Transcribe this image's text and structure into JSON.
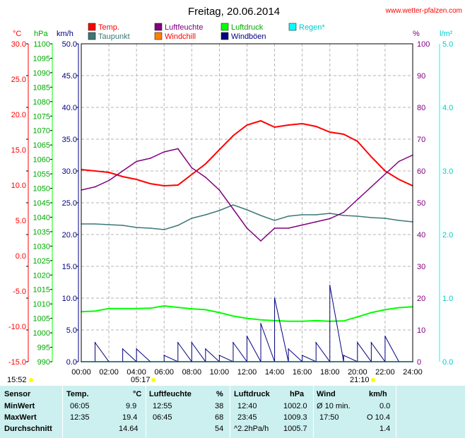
{
  "site": "www.wetter-pfalzen.com",
  "colors": {
    "temp": "#ff0000",
    "dew": "#3c7878",
    "humidity": "#800080",
    "windchill": "#ff8000",
    "pressure": "#00ff00",
    "gusts": "#000080",
    "rain": "#00ffff",
    "grid": "#b4b4b4",
    "table_bg": "#ccf0f0",
    "sun": "#ffff00"
  },
  "axes": {
    "celsius": {
      "unit": "°C",
      "labels": [
        "30.0",
        "25.0",
        "20.0",
        "15.0",
        "10.0",
        "5.0",
        "0.0",
        "-5.0",
        "-10.0",
        "-15.0"
      ]
    },
    "hpa": {
      "unit": "hPa",
      "labels": [
        "1100",
        "1095",
        "1090",
        "1085",
        "1080",
        "1075",
        "1070",
        "1065",
        "1060",
        "1055",
        "1050",
        "1045",
        "1040",
        "1035",
        "1030",
        "1025",
        "1020",
        "1015",
        "1010",
        "1005",
        "1000",
        "995",
        "990"
      ]
    },
    "kmh": {
      "unit": "km/h",
      "labels": [
        "50.0",
        "45.0",
        "40.0",
        "35.0",
        "30.0",
        "25.0",
        "20.0",
        "15.0",
        "10.0",
        "5.0",
        "0.0"
      ]
    },
    "percent": {
      "unit": "%",
      "labels": [
        "100",
        "90",
        "80",
        "70",
        "60",
        "50",
        "40",
        "30",
        "20",
        "10",
        "0"
      ]
    },
    "rain": {
      "unit": "l/m²",
      "labels": [
        "5.0",
        "4.0",
        "3.0",
        "2.0",
        "1.0",
        "0.0"
      ]
    },
    "time": [
      "00:00",
      "02:00",
      "04:00",
      "06:00",
      "08:00",
      "10:00",
      "12:00",
      "14:00",
      "16:00",
      "18:00",
      "20:00",
      "22:00",
      "24:00"
    ]
  },
  "legend": [
    {
      "label": "Temp.",
      "color": "#ff0000"
    },
    {
      "label": "Luftfeuchte",
      "color": "#800080"
    },
    {
      "label": "Luftdruck",
      "color": "#00ff00"
    },
    {
      "label": "Regen*",
      "color": "#00ffff"
    },
    {
      "label": "Taupunkt",
      "color": "#3c7878"
    },
    {
      "label": "Windchill",
      "color": "#ff8000"
    },
    {
      "label": "Windböen",
      "color": "#000080"
    }
  ],
  "sun": {
    "now": "15:52",
    "sunrise": "05:17",
    "sunset": "21:10"
  },
  "chart_data": {
    "type": "line",
    "title": "Freitag, 20.06.2014",
    "xlabel": "",
    "xlim": [
      "00:00",
      "24:00"
    ],
    "grid": true,
    "legend_position": "top",
    "x": [
      "00:00",
      "01:00",
      "02:00",
      "03:00",
      "04:00",
      "05:00",
      "06:00",
      "07:00",
      "08:00",
      "09:00",
      "10:00",
      "11:00",
      "12:00",
      "13:00",
      "14:00",
      "15:00",
      "16:00",
      "17:00",
      "18:00",
      "19:00",
      "20:00",
      "21:00",
      "22:00",
      "23:00",
      "24:00"
    ],
    "series": [
      {
        "name": "Temp.",
        "axis": "°C",
        "values": [
          12.2,
          12.0,
          11.8,
          11.2,
          10.8,
          10.2,
          9.9,
          10.0,
          11.5,
          13.0,
          15.0,
          17.0,
          18.5,
          19.1,
          18.2,
          18.5,
          18.7,
          18.3,
          17.5,
          17.2,
          16.2,
          14.0,
          12.0,
          10.8,
          9.9
        ]
      },
      {
        "name": "Taupunkt",
        "axis": "°C",
        "values": [
          4.5,
          4.5,
          4.4,
          4.3,
          4.0,
          3.9,
          3.7,
          4.3,
          5.3,
          5.8,
          6.4,
          7.2,
          6.5,
          5.7,
          5.0,
          5.6,
          5.8,
          5.8,
          6.0,
          5.7,
          5.6,
          5.4,
          5.3,
          5.0,
          4.8
        ]
      },
      {
        "name": "Luftfeuchte",
        "axis": "%",
        "values": [
          54,
          55,
          57,
          60,
          63,
          64,
          66,
          67,
          61,
          58,
          54,
          48,
          42,
          38,
          42,
          42,
          43,
          44,
          45,
          47,
          51,
          55,
          59,
          63,
          65
        ]
      },
      {
        "name": "Luftdruck",
        "axis": "hPa",
        "values": [
          1007.3,
          1007.5,
          1008.4,
          1008.4,
          1008.4,
          1008.5,
          1009.3,
          1008.8,
          1008.3,
          1008.0,
          1007.0,
          1005.8,
          1005.0,
          1004.5,
          1004.2,
          1004.0,
          1004.0,
          1004.2,
          1004.0,
          1004.1,
          1005.5,
          1007.0,
          1008.0,
          1008.7,
          1009.0
        ]
      },
      {
        "name": "Windböen",
        "axis": "km/h",
        "values": [
          0,
          3,
          0,
          2,
          2,
          0,
          1,
          3,
          3,
          2,
          1,
          3,
          4,
          6,
          10,
          2,
          1,
          3,
          12,
          1,
          3,
          3,
          4,
          0,
          0
        ]
      },
      {
        "name": "Regen*",
        "axis": "l/m²",
        "values": [
          0,
          0,
          0,
          0,
          0,
          0,
          0,
          0,
          0,
          0,
          0,
          0,
          0,
          0,
          0,
          0,
          0,
          0,
          0,
          0,
          0,
          0,
          0,
          0,
          0
        ]
      }
    ]
  },
  "table": {
    "headers": {
      "sensor": "Sensor",
      "temp": "Temp.",
      "temp_unit": "°C",
      "hum": "Luftfeuchte",
      "hum_unit": "%",
      "press": "Luftdruck",
      "press_unit": "hPa",
      "wind": "Wind",
      "wind_unit": "km/h"
    },
    "rows": [
      {
        "label": "MinWert",
        "temp_time": "06:05",
        "temp_val": "9.9",
        "hum_time": "12:55",
        "hum_val": "38",
        "press_time": "12:40",
        "press_val": "1002.0",
        "wind_time": "Ø 10 min.",
        "wind_val": "0.0"
      },
      {
        "label": "MaxWert",
        "temp_time": "12:35",
        "temp_val": "19.4",
        "hum_time": "06:45",
        "hum_val": "68",
        "press_time": "23:45",
        "press_val": "1009.3",
        "wind_time": "17:50",
        "wind_val": "O 10.4"
      },
      {
        "label": "Durchschnitt",
        "temp_time": "",
        "temp_val": "14.64",
        "hum_time": "",
        "hum_val": "54",
        "press_time": "^2.2hPa/h",
        "press_val": "1005.7",
        "wind_time": "",
        "wind_val": "1.4"
      }
    ]
  }
}
